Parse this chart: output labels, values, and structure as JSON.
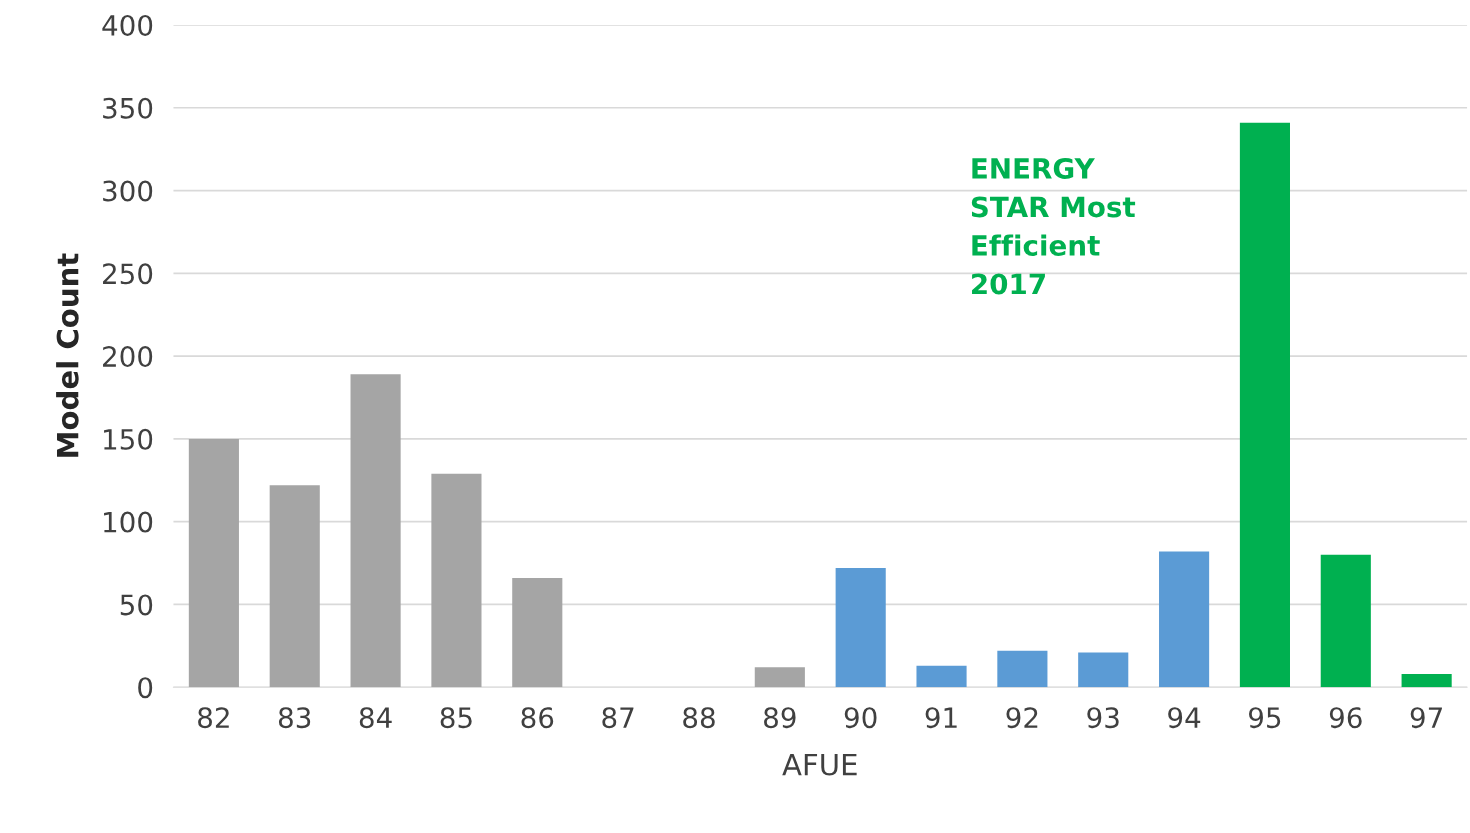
{
  "chart_data": {
    "type": "bar",
    "xlabel": "AFUE",
    "ylabel": "Model Count",
    "categories": [
      "82",
      "83",
      "84",
      "85",
      "86",
      "87",
      "88",
      "89",
      "90",
      "91",
      "92",
      "93",
      "94",
      "95",
      "96",
      "97"
    ],
    "values": [
      150,
      122,
      189,
      129,
      66,
      0,
      0,
      12,
      72,
      13,
      22,
      21,
      82,
      341,
      80,
      8
    ],
    "colors": [
      "#a5a5a5",
      "#a5a5a5",
      "#a5a5a5",
      "#a5a5a5",
      "#a5a5a5",
      "#a5a5a5",
      "#a5a5a5",
      "#a5a5a5",
      "#5b9bd5",
      "#5b9bd5",
      "#5b9bd5",
      "#5b9bd5",
      "#5b9bd5",
      "#00b050",
      "#00b050",
      "#00b050"
    ],
    "ylim": [
      0,
      400
    ],
    "yticks": [
      0,
      50,
      100,
      150,
      200,
      250,
      300,
      350,
      400
    ],
    "grid": "y",
    "annotations": [
      "ENERGY\nSTAR Most\nEfficient\n2017"
    ]
  }
}
